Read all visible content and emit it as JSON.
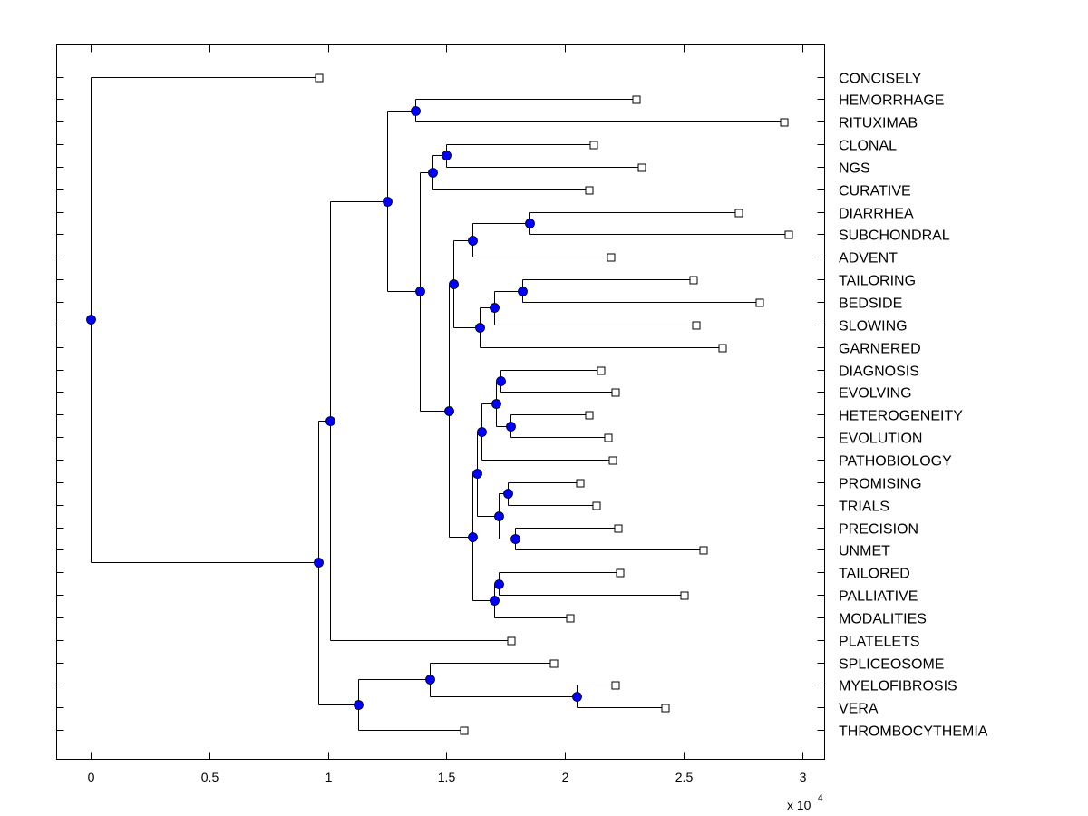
{
  "chart_data": {
    "type": "dendrogram",
    "title": "",
    "xlabel": "",
    "ylabel": "",
    "x_multiplier_label": "x 10",
    "x_multiplier_exponent": "4",
    "xlim": [
      -0.145,
      3.095
    ],
    "xticks": [
      0,
      0.5,
      1,
      1.5,
      2,
      2.5,
      3
    ],
    "xtick_labels": [
      "0",
      "0.5",
      "1",
      "1.5",
      "2",
      "2.5",
      "3"
    ],
    "grid": false,
    "colors": {
      "node_fill": "#0000ff",
      "node_edge": "#000000",
      "leaf_fill": "#ffffff",
      "line": "#000000"
    },
    "leaves": [
      {
        "label": "CONCISELY",
        "x": 0.96
      },
      {
        "label": "HEMORRHAGE",
        "x": 2.3
      },
      {
        "label": "RITUXIMAB",
        "x": 2.92
      },
      {
        "label": "CLONAL",
        "x": 2.12
      },
      {
        "label": "NGS",
        "x": 2.32
      },
      {
        "label": "CURATIVE",
        "x": 2.1
      },
      {
        "label": "DIARRHEA",
        "x": 2.73
      },
      {
        "label": "SUBCHONDRAL",
        "x": 2.94
      },
      {
        "label": "ADVENT",
        "x": 2.19
      },
      {
        "label": "TAILORING",
        "x": 2.54
      },
      {
        "label": "BEDSIDE",
        "x": 2.82
      },
      {
        "label": "SLOWING",
        "x": 2.55
      },
      {
        "label": "GARNERED",
        "x": 2.66
      },
      {
        "label": "DIAGNOSIS",
        "x": 2.15
      },
      {
        "label": "EVOLVING",
        "x": 2.21
      },
      {
        "label": "HETEROGENEITY",
        "x": 2.1
      },
      {
        "label": "EVOLUTION",
        "x": 2.18
      },
      {
        "label": "PATHOBIOLOGY",
        "x": 2.2
      },
      {
        "label": "PROMISING",
        "x": 2.06
      },
      {
        "label": "TRIALS",
        "x": 2.13
      },
      {
        "label": "PRECISION",
        "x": 2.22
      },
      {
        "label": "UNMET",
        "x": 2.58
      },
      {
        "label": "TAILORED",
        "x": 2.23
      },
      {
        "label": "PALLIATIVE",
        "x": 2.5
      },
      {
        "label": "MODALITIES",
        "x": 2.02
      },
      {
        "label": "PLATELETS",
        "x": 1.77
      },
      {
        "label": "SPLICEOSOME",
        "x": 1.95
      },
      {
        "label": "MYELOFIBROSIS",
        "x": 2.21
      },
      {
        "label": "VERA",
        "x": 2.42
      },
      {
        "label": "THROMBOCYTHEMIA",
        "x": 1.57
      }
    ],
    "tree": {
      "x": 0.0,
      "children": [
        {
          "leaf": 0
        },
        {
          "x": 0.96,
          "children": [
            {
              "x": 1.01,
              "children": [
                {
                  "x": 1.25,
                  "children": [
                    {
                      "x": 1.37,
                      "children": [
                        {
                          "leaf": 1
                        },
                        {
                          "leaf": 2
                        }
                      ]
                    },
                    {
                      "x": 1.39,
                      "children": [
                        {
                          "x": 1.44,
                          "children": [
                            {
                              "x": 1.5,
                              "children": [
                                {
                                  "leaf": 3
                                },
                                {
                                  "leaf": 4
                                }
                              ]
                            },
                            {
                              "leaf": 5
                            }
                          ]
                        },
                        {
                          "x": 1.51,
                          "children": [
                            {
                              "x": 1.53,
                              "children": [
                                {
                                  "x": 1.61,
                                  "children": [
                                    {
                                      "x": 1.85,
                                      "children": [
                                        {
                                          "leaf": 6
                                        },
                                        {
                                          "leaf": 7
                                        }
                                      ]
                                    },
                                    {
                                      "leaf": 8
                                    }
                                  ]
                                },
                                {
                                  "x": 1.64,
                                  "children": [
                                    {
                                      "x": 1.7,
                                      "children": [
                                        {
                                          "x": 1.82,
                                          "children": [
                                            {
                                              "leaf": 9
                                            },
                                            {
                                              "leaf": 10
                                            }
                                          ]
                                        },
                                        {
                                          "leaf": 11
                                        }
                                      ]
                                    },
                                    {
                                      "leaf": 12
                                    }
                                  ]
                                }
                              ]
                            },
                            {
                              "x": 1.61,
                              "children": [
                                {
                                  "x": 1.63,
                                  "children": [
                                    {
                                      "x": 1.65,
                                      "children": [
                                        {
                                          "x": 1.71,
                                          "children": [
                                            {
                                              "x": 1.73,
                                              "children": [
                                                {
                                                  "leaf": 13
                                                },
                                                {
                                                  "leaf": 14
                                                }
                                              ]
                                            },
                                            {
                                              "x": 1.77,
                                              "children": [
                                                {
                                                  "leaf": 15
                                                },
                                                {
                                                  "leaf": 16
                                                }
                                              ]
                                            }
                                          ]
                                        },
                                        {
                                          "leaf": 17
                                        }
                                      ]
                                    },
                                    {
                                      "x": 1.72,
                                      "children": [
                                        {
                                          "x": 1.76,
                                          "children": [
                                            {
                                              "leaf": 18
                                            },
                                            {
                                              "leaf": 19
                                            }
                                          ]
                                        },
                                        {
                                          "x": 1.79,
                                          "children": [
                                            {
                                              "leaf": 20
                                            },
                                            {
                                              "leaf": 21
                                            }
                                          ]
                                        }
                                      ]
                                    }
                                  ]
                                },
                                {
                                  "x": 1.7,
                                  "children": [
                                    {
                                      "x": 1.72,
                                      "children": [
                                        {
                                          "leaf": 22
                                        },
                                        {
                                          "leaf": 23
                                        }
                                      ]
                                    },
                                    {
                                      "leaf": 24
                                    }
                                  ]
                                }
                              ]
                            }
                          ]
                        }
                      ]
                    }
                  ]
                },
                {
                  "leaf": 25
                }
              ]
            },
            {
              "x": 1.13,
              "children": [
                {
                  "x": 1.43,
                  "children": [
                    {
                      "leaf": 26
                    },
                    {
                      "x": 2.05,
                      "children": [
                        {
                          "leaf": 27
                        },
                        {
                          "leaf": 28
                        }
                      ]
                    }
                  ]
                },
                {
                  "leaf": 29
                }
              ]
            }
          ]
        }
      ]
    }
  }
}
